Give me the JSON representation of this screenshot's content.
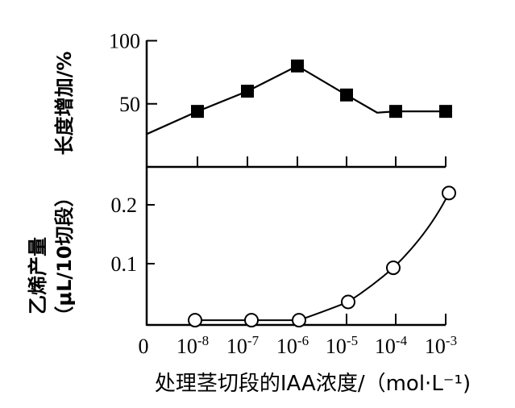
{
  "chart_data": [
    {
      "type": "line",
      "panel": "top",
      "ylabel": "长度增加/%",
      "x_categories": [
        "0",
        "10^-8",
        "10^-7",
        "10^-6",
        "10^-5",
        "10^-4",
        "10^-3"
      ],
      "series": [
        {
          "marker": "filled-square",
          "x": [
            "10^-8",
            "10^-7",
            "10^-6",
            "10^-5",
            "10^-4",
            "10^-3"
          ],
          "values": [
            44,
            60,
            80,
            57,
            44,
            44
          ]
        }
      ],
      "curve_start_value_at_0": 26,
      "y_ticks": [
        50,
        100
      ],
      "y_tick_labels": [
        "50",
        "100"
      ],
      "ylim": [
        0,
        100
      ]
    },
    {
      "type": "line",
      "panel": "bottom",
      "ylabel_line1": "乙烯产量",
      "ylabel_line2": "（μL/10切段）",
      "xlabel": "处理茎切段的IAA浓度/（mol·L⁻¹)",
      "x_tick_labels": [
        {
          "base": "0",
          "exp": ""
        },
        {
          "base": "10",
          "exp": "-8"
        },
        {
          "base": "10",
          "exp": "-7"
        },
        {
          "base": "10",
          "exp": "-6"
        },
        {
          "base": "10",
          "exp": "-5"
        },
        {
          "base": "10",
          "exp": "-4"
        },
        {
          "base": "10",
          "exp": "-3"
        }
      ],
      "series": [
        {
          "marker": "open-circle",
          "x": [
            "10^-8",
            "10^-7",
            "10^-6",
            "10^-5",
            "10^-4",
            "10^-3"
          ],
          "values": [
            0.004,
            0.004,
            0.004,
            0.035,
            0.093,
            0.22
          ]
        }
      ],
      "y_ticks": [
        0.1,
        0.2
      ],
      "y_tick_labels": [
        "0.1",
        "0.2"
      ],
      "ylim": [
        0,
        0.25
      ]
    }
  ],
  "colors": {
    "ink": "#000000",
    "background": "#ffffff"
  }
}
